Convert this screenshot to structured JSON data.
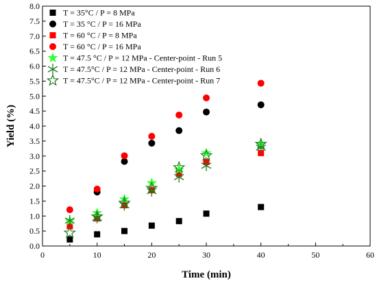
{
  "chart_data": {
    "type": "scatter",
    "xlabel": "Time (min)",
    "ylabel": "Yield (%)",
    "xlim": [
      0,
      60
    ],
    "ylim": [
      0.0,
      8.0
    ],
    "xticks": [
      "0",
      "10",
      "20",
      "30",
      "40",
      "50",
      "60"
    ],
    "yticks": [
      "0.0",
      "0.5",
      "1.0",
      "1.5",
      "2.0",
      "2.5",
      "3.0",
      "3.5",
      "4.0",
      "4.5",
      "5.0",
      "5.5",
      "6.0",
      "6.5",
      "7.0",
      "7.5",
      "8.0"
    ],
    "grid": false,
    "legend_position": "top-left",
    "series": [
      {
        "name": "T = 35°C / P = 8 MPa",
        "marker": "square",
        "color": "#000000",
        "x": [
          5,
          10,
          15,
          20,
          25,
          30,
          40
        ],
        "y": [
          0.22,
          0.39,
          0.5,
          0.68,
          0.83,
          1.08,
          1.3
        ]
      },
      {
        "name": "T = 35 °C / P = 16 MPa",
        "marker": "circle",
        "color": "#000000",
        "x": [
          10,
          15,
          20,
          25,
          30,
          40
        ],
        "y": [
          1.8,
          2.82,
          3.43,
          3.85,
          4.47,
          4.71
        ]
      },
      {
        "name": "T = 60 °C / P = 8 MPa",
        "marker": "square",
        "color": "#ff0000",
        "x": [
          5,
          10,
          15,
          20,
          25,
          30,
          40
        ],
        "y": [
          0.66,
          0.92,
          1.36,
          1.86,
          2.4,
          2.8,
          3.1
        ]
      },
      {
        "name": "T = 60 °C / P = 16 MPa",
        "marker": "circle",
        "color": "#ff0000",
        "x": [
          5,
          10,
          15,
          20,
          25,
          30,
          40
        ],
        "y": [
          1.21,
          1.9,
          3.01,
          3.66,
          4.37,
          4.94,
          5.43
        ]
      },
      {
        "name": "T  = 47.5 °C / P = 12 MPa - Center-point - Run 5",
        "marker": "star-filled",
        "color": "#33ff33",
        "x": [
          5,
          10,
          15,
          20,
          25,
          30,
          40
        ],
        "y": [
          0.84,
          1.1,
          1.56,
          2.1,
          2.55,
          3.1,
          3.4
        ]
      },
      {
        "name": "T = 47.5°C / P = 12 MPa - Center-point - Run 6",
        "marker": "asterisk",
        "color": "#1f7a1f",
        "x": [
          5,
          10,
          15,
          20,
          25,
          30,
          40
        ],
        "y": [
          0.85,
          0.94,
          1.36,
          1.83,
          2.3,
          2.68,
          3.28
        ]
      },
      {
        "name": "T = 47.5°C / P = 12 MPa - Center-point - Run 7",
        "marker": "star-open",
        "color": "#1f7a1f",
        "x": [
          5,
          10,
          15,
          20,
          25,
          30,
          40
        ],
        "y": [
          0.44,
          0.98,
          1.44,
          1.93,
          2.62,
          3.02,
          3.4
        ]
      }
    ]
  }
}
